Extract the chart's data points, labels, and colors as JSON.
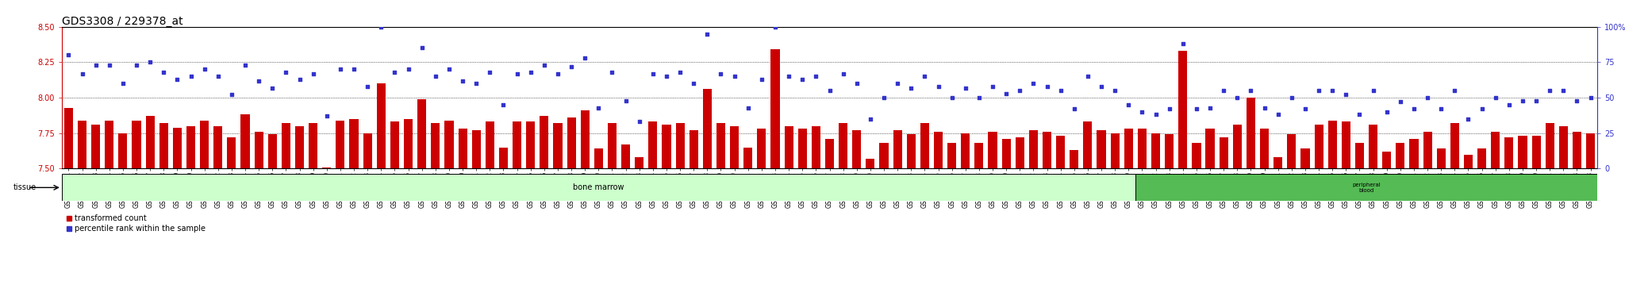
{
  "title": "GDS3308 / 229378_at",
  "samples": [
    "GSM311761",
    "GSM311762",
    "GSM311763",
    "GSM311764",
    "GSM311765",
    "GSM311766",
    "GSM311767",
    "GSM311768",
    "GSM311769",
    "GSM311770",
    "GSM311771",
    "GSM311772",
    "GSM311773",
    "GSM311774",
    "GSM311775",
    "GSM311776",
    "GSM311777",
    "GSM311778",
    "GSM311779",
    "GSM311780",
    "GSM311781",
    "GSM311782",
    "GSM311783",
    "GSM311784",
    "GSM311785",
    "GSM311786",
    "GSM311787",
    "GSM311788",
    "GSM311789",
    "GSM311790",
    "GSM311791",
    "GSM311792",
    "GSM311793",
    "GSM311794",
    "GSM311795",
    "GSM311796",
    "GSM311797",
    "GSM311798",
    "GSM311799",
    "GSM311800",
    "GSM311801",
    "GSM311802",
    "GSM311803",
    "GSM311804",
    "GSM311805",
    "GSM311806",
    "GSM311807",
    "GSM311808",
    "GSM311809",
    "GSM311810",
    "GSM311811",
    "GSM311812",
    "GSM311813",
    "GSM311814",
    "GSM311815",
    "GSM311816",
    "GSM311817",
    "GSM311818",
    "GSM311819",
    "GSM311820",
    "GSM311821",
    "GSM311822",
    "GSM311823",
    "GSM311824",
    "GSM311825",
    "GSM311826",
    "GSM311827",
    "GSM311828",
    "GSM311829",
    "GSM311830",
    "GSM311831",
    "GSM311832",
    "GSM311833",
    "GSM311834",
    "GSM311835",
    "GSM311836",
    "GSM311837",
    "GSM311838",
    "GSM311839",
    "GSM311891",
    "GSM311892",
    "GSM311893",
    "GSM311894",
    "GSM311895",
    "GSM311896",
    "GSM311897",
    "GSM311898",
    "GSM311899",
    "GSM311900",
    "GSM311901",
    "GSM311902",
    "GSM311903",
    "GSM311904",
    "GSM311905",
    "GSM311906",
    "GSM311907",
    "GSM311908",
    "GSM311909",
    "GSM311910",
    "GSM311911",
    "GSM311912",
    "GSM311913",
    "GSM311914",
    "GSM311915",
    "GSM311916",
    "GSM311917",
    "GSM311918",
    "GSM311919",
    "GSM311920",
    "GSM311921",
    "GSM311922",
    "GSM311923",
    "GSM311878"
  ],
  "bar_values": [
    7.93,
    7.84,
    7.81,
    7.84,
    7.75,
    7.84,
    7.87,
    7.82,
    7.79,
    7.8,
    7.84,
    7.8,
    7.72,
    7.88,
    7.76,
    7.74,
    7.82,
    7.8,
    7.82,
    7.51,
    7.84,
    7.85,
    7.75,
    8.1,
    7.83,
    7.85,
    7.99,
    7.82,
    7.84,
    7.78,
    7.77,
    7.83,
    7.65,
    7.83,
    7.83,
    7.87,
    7.82,
    7.86,
    7.91,
    7.64,
    7.82,
    7.67,
    7.58,
    7.83,
    7.81,
    7.82,
    7.77,
    8.06,
    7.82,
    7.8,
    7.65,
    7.78,
    8.34,
    7.8,
    7.78,
    7.8,
    7.71,
    7.82,
    7.77,
    7.57,
    7.68,
    7.77,
    7.74,
    7.82,
    7.76,
    7.68,
    7.75,
    7.68,
    7.76,
    7.71,
    7.72,
    7.77,
    7.76,
    7.73,
    7.63,
    7.83,
    7.77,
    7.75,
    7.78,
    7.78,
    7.75,
    7.74,
    8.33,
    7.68,
    7.78,
    7.72,
    7.81,
    8.0,
    7.78,
    7.58,
    7.74,
    7.64,
    7.81,
    7.84,
    7.83,
    7.68,
    7.81,
    7.62,
    7.68,
    7.71,
    7.76,
    7.64,
    7.82,
    7.6,
    7.64,
    7.76,
    7.72,
    7.73,
    7.73,
    7.82,
    7.8,
    7.76,
    7.75
  ],
  "dot_values": [
    80,
    67,
    73,
    73,
    60,
    73,
    75,
    68,
    63,
    65,
    70,
    65,
    52,
    73,
    62,
    57,
    68,
    63,
    67,
    37,
    70,
    70,
    58,
    100,
    68,
    70,
    85,
    65,
    70,
    62,
    60,
    68,
    45,
    67,
    68,
    73,
    67,
    72,
    78,
    43,
    68,
    48,
    33,
    67,
    65,
    68,
    60,
    95,
    67,
    65,
    43,
    63,
    100,
    65,
    63,
    65,
    55,
    67,
    60,
    35,
    50,
    60,
    57,
    65,
    58,
    50,
    57,
    50,
    58,
    53,
    55,
    60,
    58,
    55,
    42,
    65,
    58,
    55,
    45,
    40,
    38,
    42,
    88,
    42,
    43,
    55,
    50,
    55,
    43,
    38,
    50,
    42,
    55,
    55,
    52,
    38,
    55,
    40,
    47,
    42,
    50,
    42,
    55,
    35,
    42,
    50,
    45,
    48,
    48,
    55,
    55,
    48,
    50
  ],
  "bone_marrow_count": 79,
  "ylim_left": [
    7.5,
    8.5
  ],
  "ylim_right": [
    0,
    100
  ],
  "yticks_left": [
    7.5,
    7.75,
    8.0,
    8.25,
    8.5
  ],
  "yticks_right": [
    0,
    25,
    50,
    75,
    100
  ],
  "bar_color": "#cc0000",
  "dot_color": "#3333cc",
  "bar_width": 0.65,
  "bg_color": "#ffffff",
  "tissue_bg_color": "#ccffcc",
  "peripheral_bg_color": "#55bb55",
  "title_fontsize": 10,
  "tick_fontsize": 5.5,
  "legend_fontsize": 7,
  "tissue_label": "tissue",
  "legend_items": [
    "transformed count",
    "percentile rank within the sample"
  ]
}
